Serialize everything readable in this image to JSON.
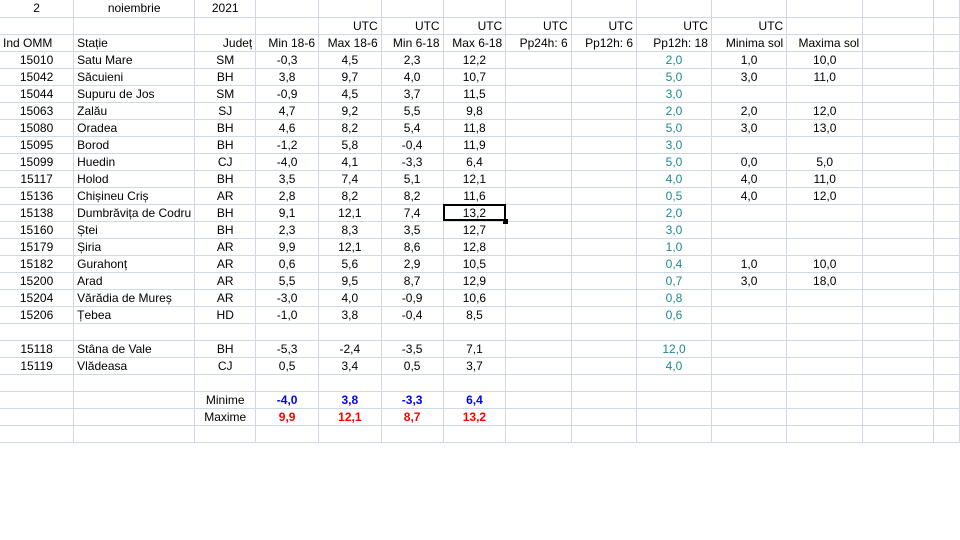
{
  "header": {
    "day": "2",
    "month": "noiembrie",
    "year": "2021"
  },
  "utc_label": "UTC",
  "columns": [
    "Ind OMM",
    "Stație",
    "Județ",
    "Min 18-6",
    "Max 18-6",
    "Min 6-18",
    "Max 6-18",
    "Pp24h: 6",
    "Pp12h: 6",
    "Pp12h: 18",
    "Minima sol",
    "Maxima sol"
  ],
  "rows": [
    [
      "15010",
      "Satu Mare",
      "SM",
      "-0,3",
      "4,5",
      "2,3",
      "12,2",
      "",
      "",
      "2,0",
      "1,0",
      "10,0"
    ],
    [
      "15042",
      "Săcuieni",
      "BH",
      "3,8",
      "9,7",
      "4,0",
      "10,7",
      "",
      "",
      "5,0",
      "3,0",
      "11,0"
    ],
    [
      "15044",
      "Supuru de Jos",
      "SM",
      "-0,9",
      "4,5",
      "3,7",
      "11,5",
      "",
      "",
      "3,0",
      "",
      ""
    ],
    [
      "15063",
      "Zalău",
      "SJ",
      "4,7",
      "9,2",
      "5,5",
      "9,8",
      "",
      "",
      "2,0",
      "2,0",
      "12,0"
    ],
    [
      "15080",
      "Oradea",
      "BH",
      "4,6",
      "8,2",
      "5,4",
      "11,8",
      "",
      "",
      "5,0",
      "3,0",
      "13,0"
    ],
    [
      "15095",
      "Borod",
      "BH",
      "-1,2",
      "5,8",
      "-0,4",
      "11,9",
      "",
      "",
      "3,0",
      "",
      ""
    ],
    [
      "15099",
      "Huedin",
      "CJ",
      "-4,0",
      "4,1",
      "-3,3",
      "6,4",
      "",
      "",
      "5,0",
      "0,0",
      "5,0"
    ],
    [
      "15117",
      "Holod",
      "BH",
      "3,5",
      "7,4",
      "5,1",
      "12,1",
      "",
      "",
      "4,0",
      "4,0",
      "11,0"
    ],
    [
      "15136",
      "Chișineu      Criș",
      "AR",
      "2,8",
      "8,2",
      "8,2",
      "11,6",
      "",
      "",
      "0,5",
      "4,0",
      "12,0"
    ],
    [
      "15138",
      "Dumbrăvița    de Codru",
      "BH",
      "9,1",
      "12,1",
      "7,4",
      "13,2",
      "",
      "",
      "2,0",
      "",
      ""
    ],
    [
      "15160",
      "Ștei",
      "BH",
      "2,3",
      "8,3",
      "3,5",
      "12,7",
      "",
      "",
      "3,0",
      "",
      ""
    ],
    [
      "15179",
      "Șiria",
      "AR",
      "9,9",
      "12,1",
      "8,6",
      "12,8",
      "",
      "",
      "1,0",
      "",
      ""
    ],
    [
      "15182",
      "Gurahonț",
      "AR",
      "0,6",
      "5,6",
      "2,9",
      "10,5",
      "",
      "",
      "0,4",
      "1,0",
      "10,0"
    ],
    [
      "15200",
      "Arad",
      "AR",
      "5,5",
      "9,5",
      "8,7",
      "12,9",
      "",
      "",
      "0,7",
      "3,0",
      "18,0"
    ],
    [
      "15204",
      "Vărădia de Mureș",
      "AR",
      "-3,0",
      "4,0",
      "-0,9",
      "10,6",
      "",
      "",
      "0,8",
      "",
      ""
    ],
    [
      "15206",
      "Țebea",
      "HD",
      "-1,0",
      "3,8",
      "-0,4",
      "8,5",
      "",
      "",
      "0,6",
      "",
      ""
    ]
  ],
  "mountain_rows": [
    [
      "15118",
      "Stâna de Vale",
      "BH",
      "-5,3",
      "-2,4",
      "-3,5",
      "7,1",
      "",
      "",
      "12,0",
      "",
      ""
    ],
    [
      "15119",
      "Vlădeasa",
      "CJ",
      "0,5",
      "3,4",
      "0,5",
      "3,7",
      "",
      "",
      "4,0",
      "",
      ""
    ]
  ],
  "summary": {
    "min_label": "Minime",
    "max_label": "Maxime",
    "min_values": [
      "-4,0",
      "3,8",
      "-3,3",
      "6,4"
    ],
    "max_values": [
      "9,9",
      "12,1",
      "8,7",
      "13,2"
    ]
  },
  "colors": {
    "precip": "#1f8a8a",
    "min": "#0000ff",
    "max": "#ff0000",
    "grid": "#d0d7e5"
  },
  "selected_cell": "15138 / Max 6-18"
}
